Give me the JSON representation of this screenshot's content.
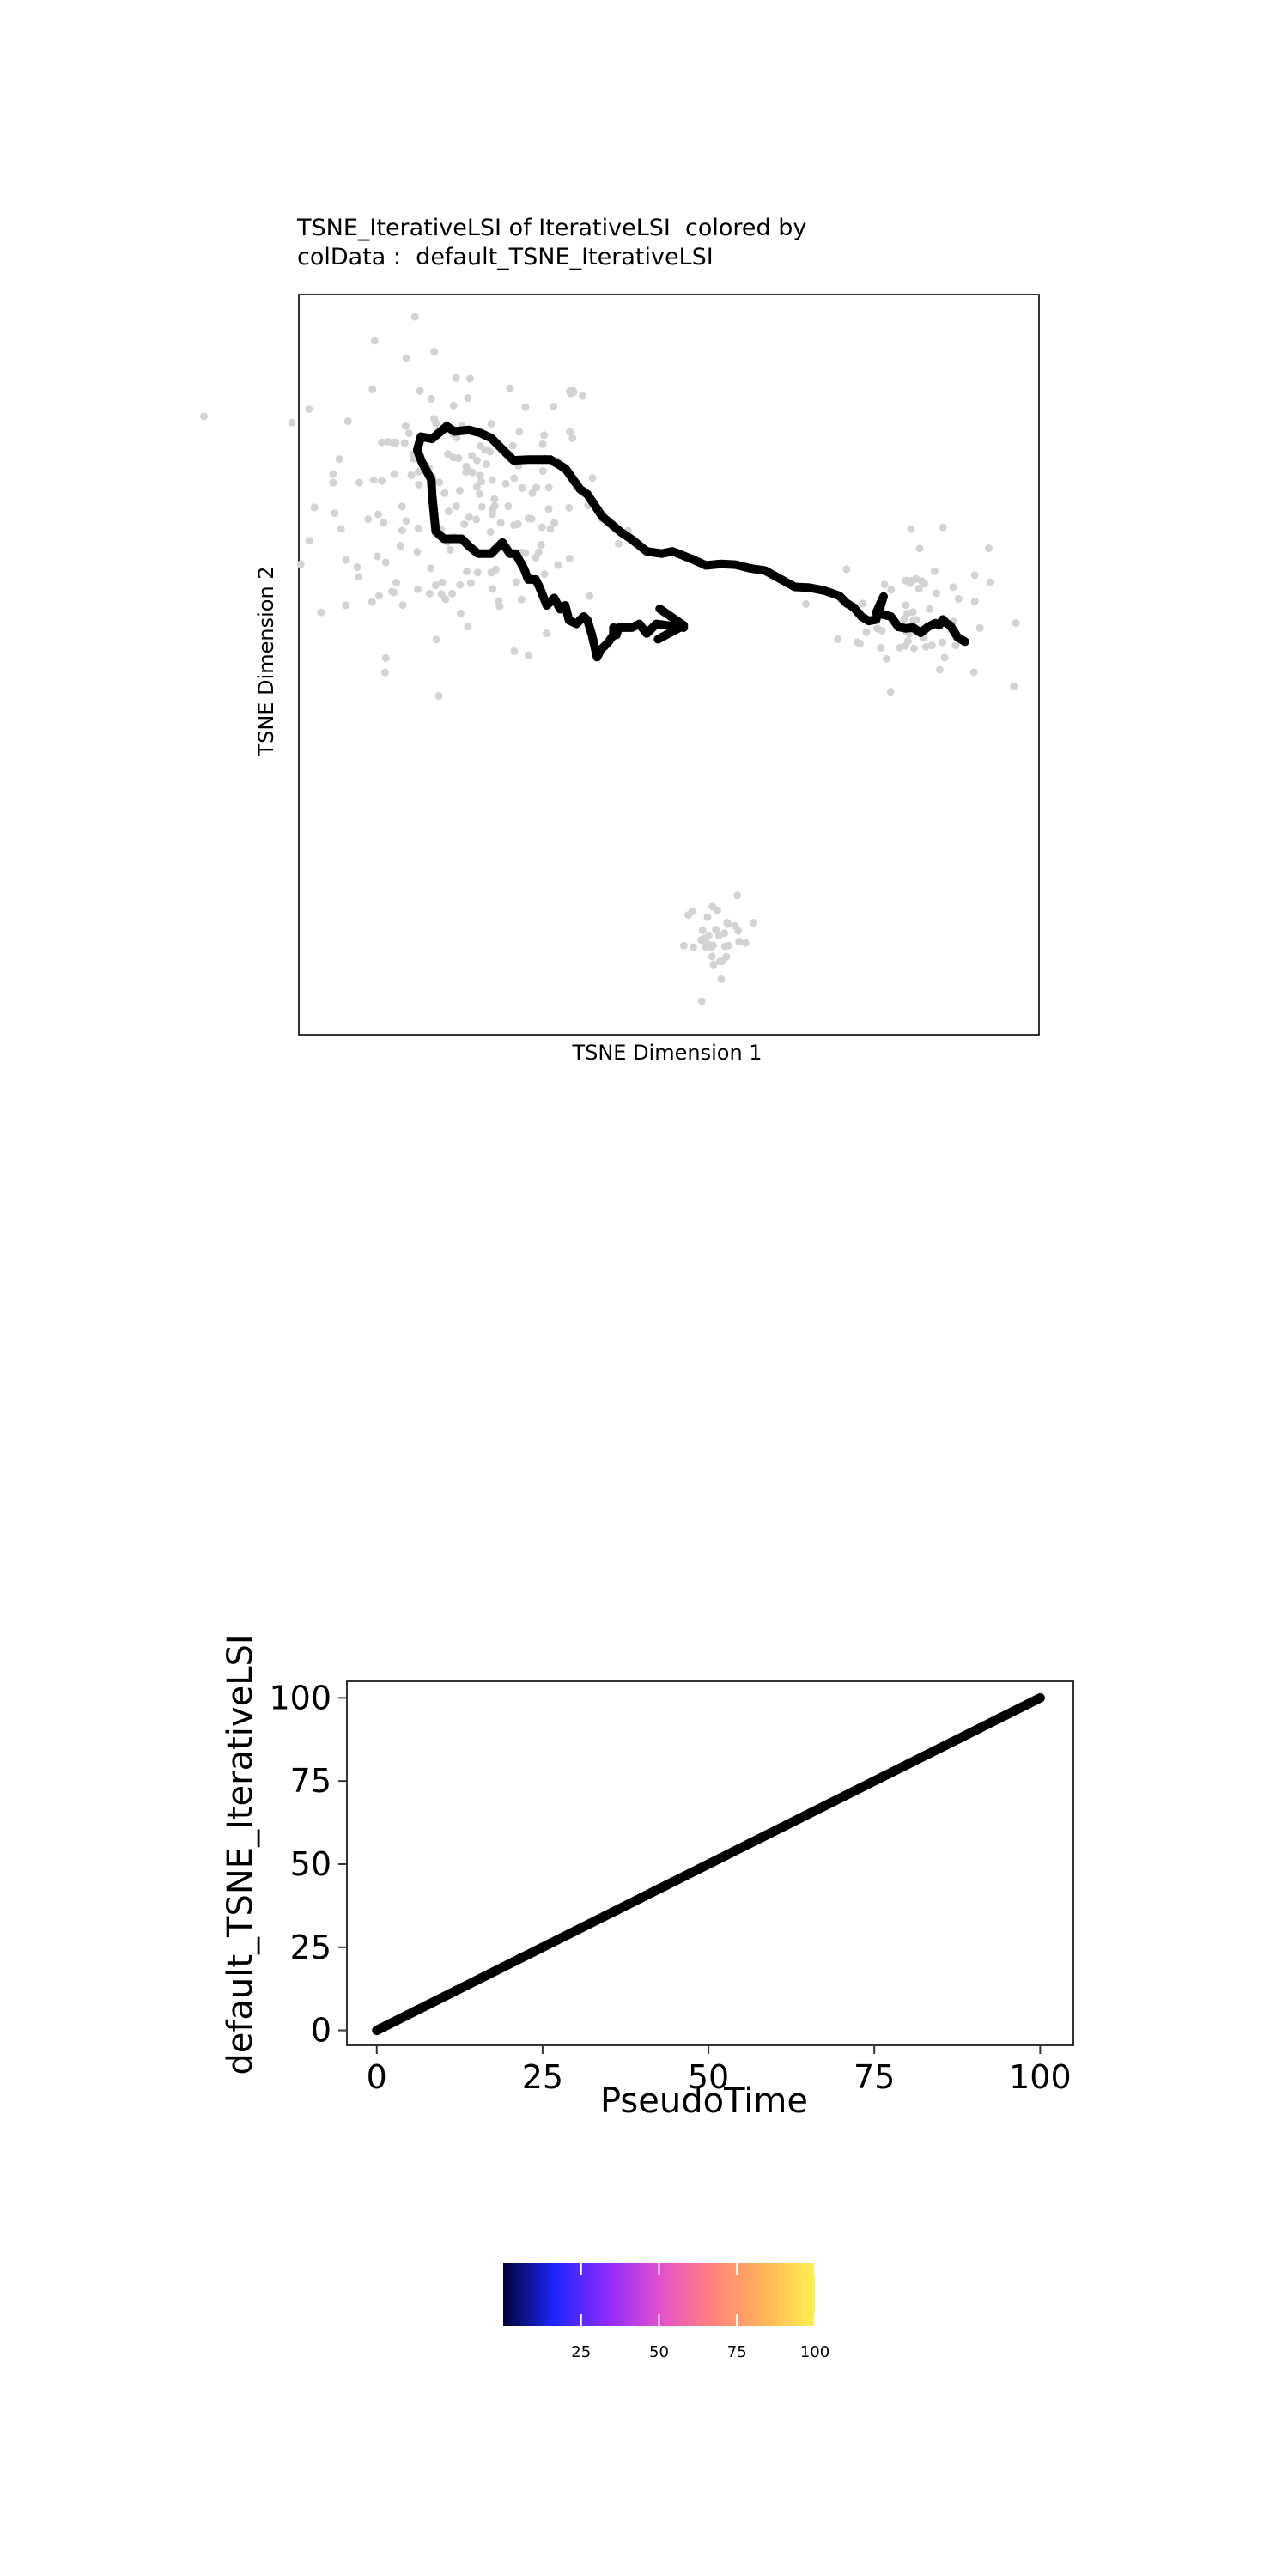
{
  "tsne_plot": {
    "title_line1": "TSNE_IterativeLSI of IterativeLSI  colored by",
    "title_line2": "colData :  default_TSNE_IterativeLSI",
    "xlabel": "TSNE Dimension 1",
    "ylabel": "TSNE Dimension 2"
  },
  "line_plot": {
    "xlabel": "PseudoTime",
    "ylabel": "default_TSNE_IterativeLSI"
  },
  "colorbar": {
    "tick_labels": [
      "25",
      "50",
      "75",
      "100"
    ]
  },
  "colors": {
    "point": "#d3d3d3",
    "trajectory": "#000000",
    "palette": [
      "#000436",
      "#1f26ff",
      "#8e2bff",
      "#e04fcf",
      "#ff7f7f",
      "#ffb35a",
      "#fff050"
    ]
  },
  "chart_data": [
    {
      "type": "scatter",
      "title": "TSNE_IterativeLSI of IterativeLSI  colored by colData :  default_TSNE_IterativeLSI",
      "xlabel": "TSNE Dimension 1",
      "ylabel": "TSNE Dimension 2",
      "grid": false,
      "xlim": [
        0,
        100
      ],
      "ylim": [
        0,
        100
      ],
      "clusters": [
        {
          "center": [
            22,
            72
          ],
          "spread": [
            10,
            10
          ],
          "count": 190
        },
        {
          "center": [
            83,
            57
          ],
          "spread": [
            5,
            5
          ],
          "count": 60
        },
        {
          "center": [
            57,
            13
          ],
          "spread": [
            2.5,
            2.5
          ],
          "count": 35
        }
      ],
      "trajectory": {
        "x": [
          16,
          16.5,
          18,
          20,
          21,
          23,
          24.5,
          26,
          27,
          29,
          31,
          34,
          36,
          38,
          39,
          41,
          43.5,
          45,
          47,
          49,
          50.5,
          53,
          55,
          57,
          59,
          61,
          63,
          65,
          67,
          69,
          71,
          73,
          74,
          75,
          76,
          77,
          78,
          79,
          78,
          80,
          81,
          82,
          83,
          84,
          85,
          86,
          86.5,
          87,
          87.5,
          88,
          89,
          90
        ],
        "y": [
          79,
          80.8,
          80.5,
          82.2,
          81.5,
          81.7,
          81.3,
          80.6,
          79.6,
          77.6,
          77.7,
          77.7,
          76.5,
          73.7,
          73,
          70,
          67.9,
          66.9,
          65.3,
          65,
          65.3,
          64.3,
          63.4,
          63.6,
          63.5,
          63,
          62.7,
          61.6,
          60.5,
          60.4,
          60,
          59.3,
          58.3,
          57.7,
          56.5,
          55.9,
          56.1,
          59.2,
          57,
          56.5,
          55.1,
          54.9,
          55,
          54.3,
          55.1,
          55.6,
          55.3,
          56.1,
          55.6,
          55.3,
          53.7,
          53.1
        ]
      },
      "trajectory_lower": {
        "x": [
          16,
          16.6,
          17.2,
          17.9,
          18,
          18.5,
          19.6,
          20.7,
          22,
          23,
          24.2,
          26,
          27.5,
          28.5,
          29.3,
          30.4,
          31,
          32,
          32.5,
          33.5,
          34.5,
          35.3,
          36,
          36.5,
          37.5,
          38.5,
          39,
          39.6,
          40.3,
          40.8,
          41.8,
          42.5,
          42.5,
          42.9,
          43.2,
          44,
          45,
          46,
          47,
          48.3,
          52
        ],
        "y": [
          79,
          77.4,
          76.3,
          75,
          73,
          68,
          67,
          67,
          67,
          66,
          65,
          65,
          66.5,
          65,
          65,
          63,
          61.5,
          61.5,
          60.5,
          58,
          59,
          57.5,
          58,
          56,
          55.5,
          56.5,
          56,
          54,
          51,
          52,
          53,
          54,
          55,
          54,
          55,
          55,
          55,
          55.5,
          54.2,
          55.5,
          55
        ]
      },
      "arrow_tip": [
        52,
        55.3
      ]
    },
    {
      "type": "line",
      "xlabel": "PseudoTime",
      "ylabel": "default_TSNE_IterativeLSI",
      "x": [
        0,
        100
      ],
      "y": [
        0,
        100
      ],
      "xlim": [
        -4.5,
        105
      ],
      "ylim": [
        -4.5,
        105
      ],
      "xticks": [
        0,
        25,
        50,
        75,
        100
      ],
      "yticks": [
        0,
        25,
        50,
        75,
        100
      ],
      "grid": false
    },
    {
      "type": "heatmap",
      "colorbar_range": [
        0,
        100
      ],
      "ticks": [
        25,
        50,
        75,
        100
      ],
      "tick_labels": [
        "25",
        "50",
        "75",
        "100"
      ]
    }
  ]
}
